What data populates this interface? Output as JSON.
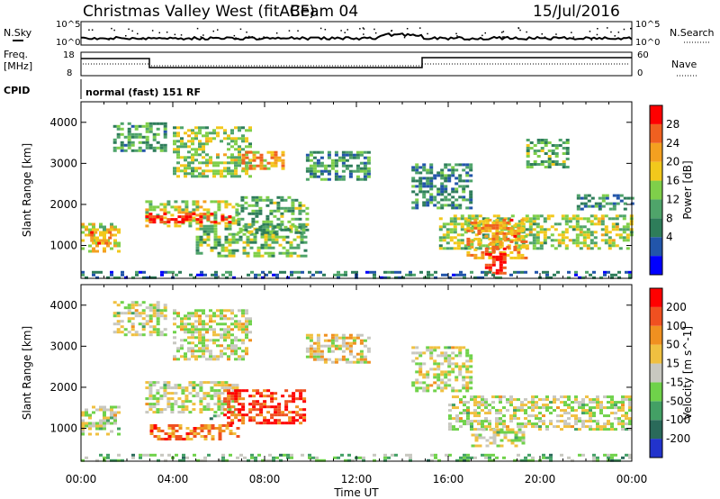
{
  "header": {
    "title": "Christmas Valley West (fitACF)",
    "beam": "Beam 04",
    "date": "15/Jul/2016"
  },
  "nsky_panel": {
    "left_label": "N.Sky",
    "left_ticks": [
      "10^5",
      "10^0"
    ],
    "right_label": "N.Search",
    "right_ticks": [
      "10^5",
      "10^0"
    ]
  },
  "freq_panel": {
    "left_label_1": "Freq.",
    "left_label_2": "[MHz]",
    "left_ticks": [
      "18",
      "8"
    ],
    "right_label": "Nave",
    "right_ticks": [
      "60",
      "0"
    ]
  },
  "cpid": {
    "label": "CPID",
    "value": "normal (fast) 151 RF"
  },
  "colors": {
    "power_scale": [
      "#0000ff",
      "#2255aa",
      "#2e7d5a",
      "#4fa46a",
      "#7fcf4a",
      "#f2c81c",
      "#f4a020",
      "#f06020",
      "#ff0000"
    ],
    "velocity_scale": [
      "#2233cc",
      "#2a6a5a",
      "#43a065",
      "#6fd24a",
      "#c8c8c0",
      "#f0c040",
      "#f09020",
      "#f05020",
      "#ff0000"
    ]
  },
  "chart_data": [
    {
      "type": "heatmap",
      "name": "power",
      "ylabel": "Slant Range [km]",
      "xlabel": "",
      "x_ticks": [
        "00:00",
        "04:00",
        "08:00",
        "12:00",
        "16:00",
        "20:00",
        "00:00"
      ],
      "y_ticks": [
        "1000",
        "2000",
        "3000",
        "4000"
      ],
      "ylim": [
        200,
        4500
      ],
      "xlim_hours": [
        0,
        24
      ],
      "colorbar_label": "Power [dB]",
      "colorbar_ticks": [
        "28",
        "24",
        "20",
        "16",
        "12",
        "8",
        "4"
      ],
      "regions": [
        {
          "t0": 0.0,
          "t1": 1.6,
          "r0": 850,
          "r1": 1550,
          "v": 0.58
        },
        {
          "t0": 0.4,
          "t1": 1.2,
          "r0": 1050,
          "r1": 1350,
          "v": 0.8
        },
        {
          "t0": 2.8,
          "t1": 6.8,
          "r0": 1500,
          "r1": 2100,
          "v": 0.55
        },
        {
          "t0": 2.8,
          "t1": 6.5,
          "r0": 1550,
          "r1": 1800,
          "v": 0.92
        },
        {
          "t0": 5.0,
          "t1": 9.8,
          "r0": 750,
          "r1": 1500,
          "v": 0.45
        },
        {
          "t0": 6.8,
          "t1": 9.8,
          "r0": 1300,
          "r1": 2200,
          "v": 0.4
        },
        {
          "t0": 1.4,
          "t1": 3.6,
          "r0": 3300,
          "r1": 4000,
          "v": 0.38
        },
        {
          "t0": 4.0,
          "t1": 7.4,
          "r0": 2700,
          "r1": 3900,
          "v": 0.5
        },
        {
          "t0": 7.0,
          "t1": 8.8,
          "r0": 2900,
          "r1": 3300,
          "v": 0.68
        },
        {
          "t0": 9.8,
          "t1": 12.6,
          "r0": 2600,
          "r1": 3300,
          "v": 0.35
        },
        {
          "t0": 14.4,
          "t1": 17.0,
          "r0": 1900,
          "r1": 3000,
          "v": 0.3
        },
        {
          "t0": 15.6,
          "t1": 24.0,
          "r0": 950,
          "r1": 1750,
          "v": 0.5
        },
        {
          "t0": 16.8,
          "t1": 19.4,
          "r0": 700,
          "r1": 1650,
          "v": 0.72
        },
        {
          "t0": 17.6,
          "t1": 18.4,
          "r0": 350,
          "r1": 950,
          "v": 0.95
        },
        {
          "t0": 21.6,
          "t1": 24.0,
          "r0": 1900,
          "r1": 2250,
          "v": 0.3
        },
        {
          "t0": 19.4,
          "t1": 21.2,
          "r0": 2900,
          "r1": 3600,
          "v": 0.4
        },
        {
          "t0": 0.0,
          "t1": 24.0,
          "r0": 200,
          "r1": 380,
          "v": 0.25
        }
      ]
    },
    {
      "type": "heatmap",
      "name": "velocity",
      "ylabel": "Slant Range [km]",
      "xlabel": "Time UT",
      "x_ticks": [
        "00:00",
        "04:00",
        "08:00",
        "12:00",
        "16:00",
        "20:00",
        "00:00"
      ],
      "y_ticks": [
        "1000",
        "2000",
        "3000",
        "4000"
      ],
      "ylim": [
        200,
        4500
      ],
      "xlim_hours": [
        0,
        24
      ],
      "colorbar_label": "Velocity [m s^-1]",
      "colorbar_ticks": [
        "200",
        "100",
        "50",
        "15",
        "-15",
        "-50",
        "-100",
        "-200"
      ],
      "regions": [
        {
          "t0": 0.0,
          "t1": 1.6,
          "r0": 850,
          "r1": 1550,
          "v": 0.5
        },
        {
          "t0": 2.8,
          "t1": 6.8,
          "r0": 1400,
          "r1": 2150,
          "v": 0.5
        },
        {
          "t0": 5.6,
          "t1": 6.2,
          "r0": 1250,
          "r1": 1400,
          "v": 0.35
        },
        {
          "t0": 6.2,
          "t1": 9.8,
          "r0": 1100,
          "r1": 1950,
          "v": 0.88
        },
        {
          "t0": 3.0,
          "t1": 6.8,
          "r0": 750,
          "r1": 1100,
          "v": 0.75
        },
        {
          "t0": 1.4,
          "t1": 3.6,
          "r0": 3300,
          "r1": 4100,
          "v": 0.5
        },
        {
          "t0": 4.0,
          "t1": 7.4,
          "r0": 2700,
          "r1": 3900,
          "v": 0.52
        },
        {
          "t0": 9.8,
          "t1": 12.6,
          "r0": 2600,
          "r1": 3300,
          "v": 0.55
        },
        {
          "t0": 14.4,
          "t1": 17.0,
          "r0": 1900,
          "r1": 3000,
          "v": 0.5
        },
        {
          "t0": 16.0,
          "t1": 24.0,
          "r0": 950,
          "r1": 1800,
          "v": 0.5
        },
        {
          "t0": 17.0,
          "t1": 19.2,
          "r0": 550,
          "r1": 1000,
          "v": 0.5
        },
        {
          "t0": 0.0,
          "t1": 24.0,
          "r0": 200,
          "r1": 380,
          "v": 0.38
        }
      ]
    }
  ]
}
